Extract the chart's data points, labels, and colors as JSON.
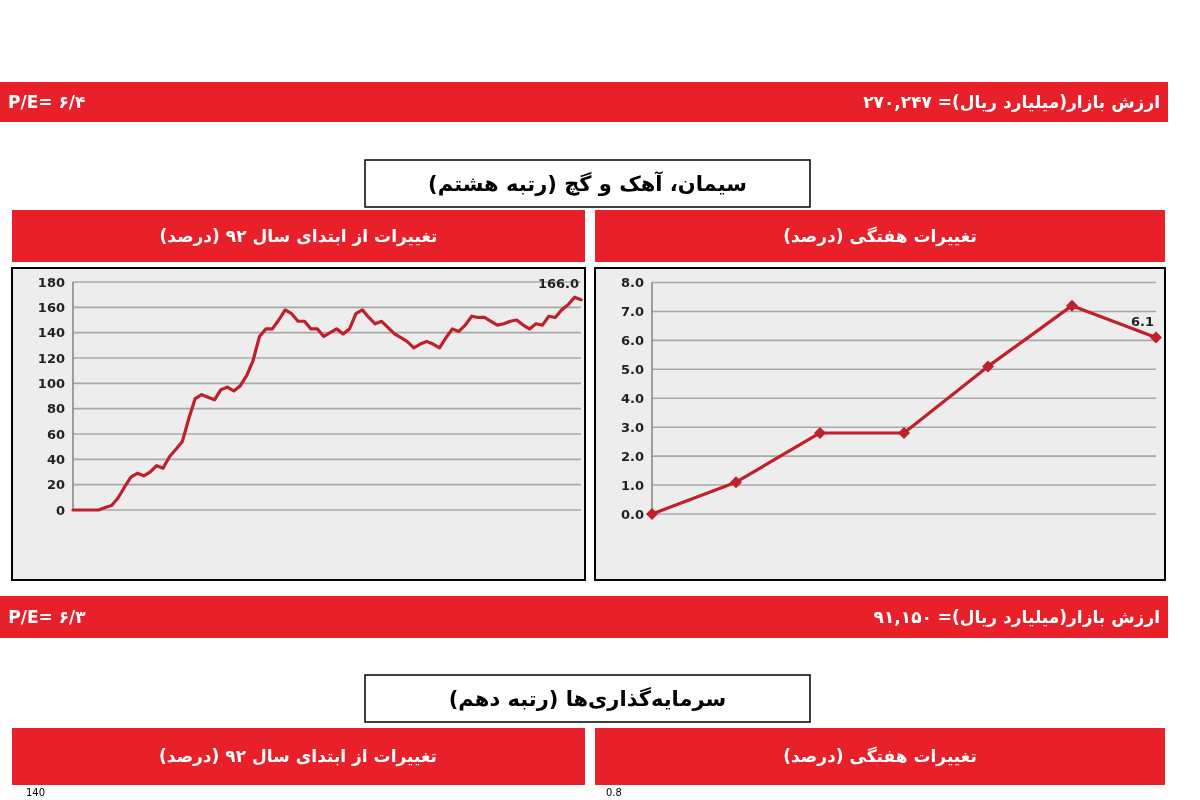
{
  "chart_data": [
    {
      "type": "other",
      "annotations": [
        "ارزش بازار(میلیارد ریال)= ۲۷۰,۲۴۷",
        "P/E= ۶/۴"
      ]
    },
    {
      "type": "other",
      "title": "سیمان، آهک و گچ (رتبه هشتم)"
    },
    {
      "type": "line",
      "title": "تغییرات از ابتدای سال ۹۲ (درصد)",
      "color": "#c0202a",
      "marker": "none",
      "line_style": "solid",
      "grid": "y",
      "ylim": [
        0,
        180
      ],
      "yticks": [
        0,
        20,
        40,
        60,
        80,
        100,
        120,
        140,
        160,
        180
      ],
      "categories": [
        null,
        null,
        null,
        null,
        null,
        null,
        null,
        null,
        null,
        null,
        null,
        null,
        null,
        null,
        null,
        null,
        null,
        null,
        null,
        null,
        null,
        null,
        null,
        null,
        null,
        null,
        null,
        null,
        null,
        null,
        null,
        null,
        null,
        null,
        null,
        null,
        null,
        null,
        null,
        null,
        null,
        null,
        null,
        null,
        null,
        null,
        null,
        null,
        null,
        null,
        null,
        null,
        null,
        null,
        null,
        null,
        null,
        null,
        null,
        null,
        null,
        null,
        null,
        null,
        null,
        null,
        null,
        null,
        null,
        null,
        null,
        null,
        null,
        null,
        null,
        null,
        null,
        null,
        null,
        null
      ],
      "values": [
        0,
        0,
        0,
        0,
        0,
        2,
        3.6,
        9.5,
        18,
        26,
        29,
        27,
        30,
        35,
        33,
        42,
        48,
        54,
        72,
        88,
        91,
        89,
        87,
        95,
        97,
        94,
        98,
        106,
        118,
        137,
        143,
        143,
        150,
        158,
        155,
        149,
        149,
        143,
        143,
        137,
        140,
        143,
        139,
        143,
        155,
        158,
        152,
        147,
        149,
        144,
        139,
        136,
        133,
        128,
        131,
        133,
        131,
        128,
        136,
        143,
        141,
        146,
        153,
        152,
        152,
        149,
        146,
        147,
        149,
        150,
        146,
        143,
        147,
        146,
        153,
        152,
        158,
        162,
        168,
        166
      ],
      "value_labels": [
        null,
        null,
        null,
        null,
        null,
        null,
        null,
        null,
        null,
        null,
        null,
        null,
        null,
        null,
        null,
        null,
        null,
        null,
        null,
        null,
        null,
        null,
        null,
        null,
        null,
        null,
        null,
        null,
        null,
        null,
        null,
        null,
        null,
        null,
        null,
        null,
        null,
        null,
        null,
        null,
        null,
        null,
        null,
        null,
        null,
        null,
        null,
        null,
        null,
        null,
        null,
        null,
        null,
        null,
        null,
        null,
        null,
        null,
        null,
        null,
        null,
        null,
        null,
        null,
        null,
        null,
        null,
        null,
        null,
        null,
        null,
        null,
        null,
        null,
        null,
        null,
        null,
        null,
        null,
        "166.0"
      ]
    },
    {
      "type": "line",
      "title": "تغییرات هفتگی (درصد)",
      "color": "#c0202a",
      "marker": "diamond",
      "line_style": "solid",
      "grid": "y",
      "categories": [
        null,
        null,
        null,
        null,
        null,
        null,
        null
      ],
      "values": [
        0,
        1.1,
        2.8,
        2.8,
        5.1,
        7.2,
        6.1
      ],
      "value_labels": [
        null,
        null,
        null,
        null,
        null,
        null,
        "6.1"
      ],
      "ylim": [
        0,
        8
      ],
      "yticks": [
        {
          "value": 0,
          "label": "0.0"
        },
        {
          "value": 1,
          "label": "1.0"
        },
        {
          "value": 2,
          "label": "2.0"
        },
        {
          "value": 3,
          "label": "3.0"
        },
        {
          "value": 4,
          "label": "4.0"
        },
        {
          "value": 5,
          "label": "5.0"
        },
        {
          "value": 6,
          "label": "6.0"
        },
        {
          "value": 7,
          "label": "7.0"
        },
        {
          "value": 8,
          "label": "8.0"
        }
      ]
    },
    {
      "type": "other",
      "annotations": [
        "ارزش بازار(میلیارد ریال)= ۹۱,۱۵۰",
        "P/E= ۶/۳"
      ]
    },
    {
      "type": "other",
      "title": "سرمایه‌گذاری‌ها (رتبه دهم)",
      "annotations": [
        "تغییرات از ابتدای سال ۹۲ (درصد)",
        "تغییرات هفتگی (درصد)",
        "140",
        "0.8"
      ]
    }
  ]
}
